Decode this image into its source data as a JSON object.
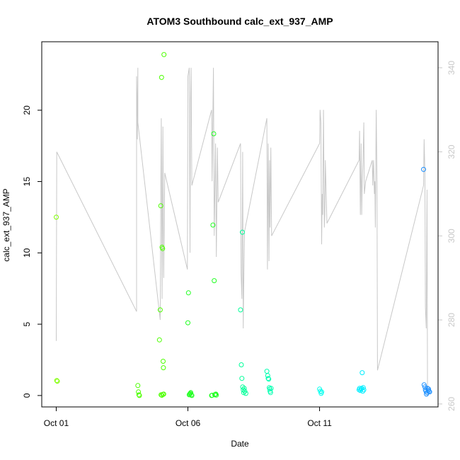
{
  "chart_data": {
    "type": "scatter",
    "title": "ATOM3 Southbound calc_ext_937_AMP",
    "xlabel": "Date",
    "ylabel": "calc_ext_937_AMP",
    "grid": false,
    "x_ticks": [
      {
        "label": "Oct 01",
        "value": 0
      },
      {
        "label": "Oct 06",
        "value": 5
      },
      {
        "label": "Oct 11",
        "value": 10
      }
    ],
    "xlim": [
      -0.55,
      14.5
    ],
    "ylim": [
      -0.8,
      24.8
    ],
    "y_ticks": [
      0,
      5,
      10,
      15,
      20
    ],
    "secondary_axis": {
      "side": "right",
      "color": "#c8c8c8",
      "ylim": [
        259.3,
        346.2
      ],
      "ticks": [
        260,
        280,
        300,
        320,
        340
      ],
      "unlabeled_series_line": [
        [
          0.0,
          275
        ],
        [
          0.02,
          320
        ],
        [
          3.05,
          282
        ],
        [
          3.05,
          338
        ],
        [
          3.08,
          328
        ],
        [
          3.08,
          323
        ],
        [
          3.1,
          340
        ],
        [
          3.1,
          327
        ],
        [
          3.95,
          280
        ],
        [
          3.97,
          310
        ],
        [
          3.99,
          328
        ],
        [
          4.02,
          285
        ],
        [
          4.05,
          326
        ],
        [
          4.08,
          290
        ],
        [
          4.12,
          315
        ],
        [
          4.98,
          292
        ],
        [
          5.0,
          338
        ],
        [
          5.05,
          340
        ],
        [
          5.08,
          296
        ],
        [
          5.1,
          332
        ],
        [
          5.12,
          340
        ],
        [
          5.15,
          312
        ],
        [
          5.9,
          330
        ],
        [
          5.92,
          313
        ],
        [
          5.97,
          340
        ],
        [
          6.0,
          300
        ],
        [
          6.05,
          322
        ],
        [
          6.08,
          295
        ],
        [
          6.12,
          321
        ],
        [
          6.15,
          308
        ],
        [
          7.0,
          322
        ],
        [
          7.02,
          291
        ],
        [
          7.05,
          285
        ],
        [
          7.08,
          320
        ],
        [
          7.1,
          278
        ],
        [
          7.12,
          288
        ],
        [
          7.15,
          301
        ],
        [
          8.0,
          328
        ],
        [
          8.02,
          292
        ],
        [
          8.05,
          322
        ],
        [
          8.08,
          294
        ],
        [
          8.1,
          318
        ],
        [
          8.12,
          302
        ],
        [
          8.15,
          321
        ],
        [
          8.18,
          300
        ],
        [
          10.0,
          322
        ],
        [
          10.02,
          330
        ],
        [
          10.05,
          327
        ],
        [
          10.08,
          298
        ],
        [
          10.1,
          310
        ],
        [
          10.12,
          305
        ],
        [
          10.15,
          330
        ],
        [
          10.18,
          302
        ],
        [
          10.2,
          305
        ],
        [
          10.22,
          318
        ],
        [
          10.25,
          310
        ],
        [
          10.28,
          303
        ],
        [
          11.5,
          318
        ],
        [
          11.52,
          325
        ],
        [
          11.55,
          305
        ],
        [
          11.58,
          322
        ],
        [
          11.6,
          305
        ],
        [
          11.62,
          312
        ],
        [
          11.65,
          318
        ],
        [
          11.68,
          327
        ],
        [
          11.7,
          310
        ],
        [
          11.75,
          313
        ],
        [
          12.0,
          318
        ],
        [
          12.02,
          312
        ],
        [
          12.05,
          318
        ],
        [
          12.08,
          310
        ],
        [
          12.1,
          313
        ],
        [
          12.12,
          302
        ],
        [
          12.15,
          330
        ],
        [
          12.18,
          313
        ],
        [
          12.2,
          268
        ],
        [
          13.95,
          312
        ],
        [
          13.97,
          323
        ],
        [
          14.0,
          315
        ],
        [
          14.02,
          283
        ],
        [
          14.05,
          278
        ],
        [
          14.08,
          311
        ],
        [
          14.1,
          262
        ]
      ]
    },
    "series": [
      {
        "color": "#7fff00",
        "points": [
          [
            0.0,
            12.5
          ],
          [
            0.02,
            1.05
          ],
          [
            0.04,
            1.0
          ]
        ]
      },
      {
        "color": "#4cff00",
        "points": [
          [
            3.1,
            0.7
          ],
          [
            3.12,
            0.25
          ],
          [
            3.14,
            0.05
          ],
          [
            3.16,
            0.0
          ],
          [
            3.92,
            3.9
          ],
          [
            3.95,
            6.0
          ],
          [
            3.97,
            13.3
          ],
          [
            4.0,
            22.3
          ],
          [
            4.02,
            10.4
          ],
          [
            4.04,
            10.3
          ],
          [
            4.06,
            2.4
          ],
          [
            4.07,
            1.95
          ],
          [
            4.09,
            23.9
          ],
          [
            3.98,
            0.05
          ],
          [
            4.01,
            0.02
          ],
          [
            4.05,
            0.08
          ],
          [
            4.08,
            0.1
          ]
        ]
      },
      {
        "color": "#22ff22",
        "points": [
          [
            5.0,
            5.1
          ],
          [
            5.02,
            7.2
          ],
          [
            5.05,
            0.05
          ],
          [
            5.07,
            0.1
          ],
          [
            5.09,
            0.15
          ],
          [
            5.11,
            0.2
          ],
          [
            5.13,
            0.05
          ],
          [
            5.15,
            0.0
          ],
          [
            5.9,
            0.0
          ],
          [
            5.92,
            0.02
          ],
          [
            5.95,
            11.95
          ],
          [
            5.98,
            18.35
          ],
          [
            6.0,
            8.05
          ],
          [
            6.02,
            0.05
          ],
          [
            6.04,
            0.08
          ],
          [
            6.06,
            0.1
          ],
          [
            6.08,
            0.03
          ]
        ]
      },
      {
        "color": "#00ff99",
        "points": [
          [
            7.0,
            6.0
          ],
          [
            7.03,
            2.15
          ],
          [
            7.05,
            1.2
          ],
          [
            7.07,
            11.45
          ],
          [
            7.08,
            0.6
          ],
          [
            7.1,
            0.4
          ],
          [
            7.12,
            0.2
          ],
          [
            7.14,
            0.5
          ],
          [
            7.16,
            0.3
          ],
          [
            7.2,
            0.15
          ]
        ]
      },
      {
        "color": "#00ffb0",
        "points": [
          [
            8.0,
            1.7
          ],
          [
            8.03,
            1.4
          ],
          [
            8.05,
            1.2
          ],
          [
            8.07,
            1.15
          ],
          [
            8.09,
            0.55
          ],
          [
            8.11,
            0.45
          ],
          [
            8.12,
            0.3
          ],
          [
            8.14,
            0.2
          ],
          [
            8.16,
            0.5
          ]
        ]
      },
      {
        "color": "#00ffee",
        "points": [
          [
            10.0,
            0.45
          ],
          [
            10.03,
            0.3
          ],
          [
            10.06,
            0.15
          ],
          [
            10.08,
            0.25
          ]
        ]
      },
      {
        "color": "#00eeff",
        "points": [
          [
            11.5,
            0.4
          ],
          [
            11.52,
            0.5
          ],
          [
            11.55,
            0.35
          ],
          [
            11.58,
            0.45
          ],
          [
            11.6,
            0.5
          ],
          [
            11.62,
            1.6
          ],
          [
            11.64,
            0.3
          ],
          [
            11.66,
            0.55
          ],
          [
            11.68,
            0.4
          ]
        ]
      },
      {
        "color": "#1e90ff",
        "points": [
          [
            13.95,
            15.85
          ],
          [
            13.97,
            0.75
          ],
          [
            14.0,
            0.6
          ],
          [
            14.02,
            0.4
          ],
          [
            14.04,
            0.3
          ],
          [
            14.06,
            0.1
          ],
          [
            14.08,
            0.2
          ],
          [
            14.1,
            0.5
          ],
          [
            14.12,
            0.35
          ],
          [
            14.14,
            0.45
          ],
          [
            14.16,
            0.3
          ],
          [
            14.18,
            0.25
          ]
        ]
      }
    ]
  }
}
